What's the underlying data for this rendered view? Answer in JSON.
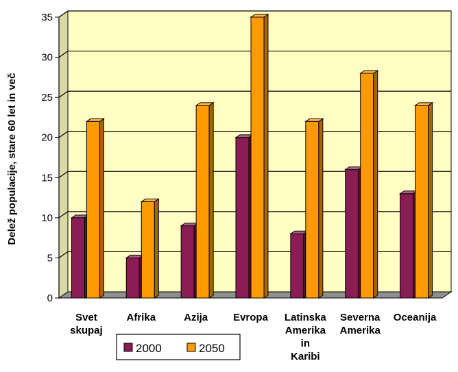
{
  "chart_data": {
    "type": "bar",
    "title": "",
    "xlabel": "",
    "ylabel": "Delež populacije, stare 60 let in več",
    "ylim": [
      0,
      35
    ],
    "yticks": [
      "0",
      "5",
      "10",
      "15",
      "20",
      "25",
      "30",
      "35"
    ],
    "grid": true,
    "legend_position": "bottom",
    "categories": [
      [
        "Svet",
        "skupaj"
      ],
      [
        "Afrika"
      ],
      [
        "Azija"
      ],
      [
        "Evropa"
      ],
      [
        "Latinska",
        "Amerika",
        "in",
        "Karibi"
      ],
      [
        "Severna",
        "Amerika"
      ],
      [
        "Oceanija"
      ]
    ],
    "series": [
      {
        "name": "2000",
        "values": [
          10,
          5,
          9,
          20,
          8,
          16,
          13
        ]
      },
      {
        "name": "2050",
        "values": [
          22,
          12,
          24,
          35,
          22,
          28,
          24
        ]
      }
    ],
    "colors": {
      "2000": "#8b1d55",
      "2050": "#ff9b00",
      "plot_bg": "#ffffc4",
      "floor": "#8f8f8f"
    }
  }
}
